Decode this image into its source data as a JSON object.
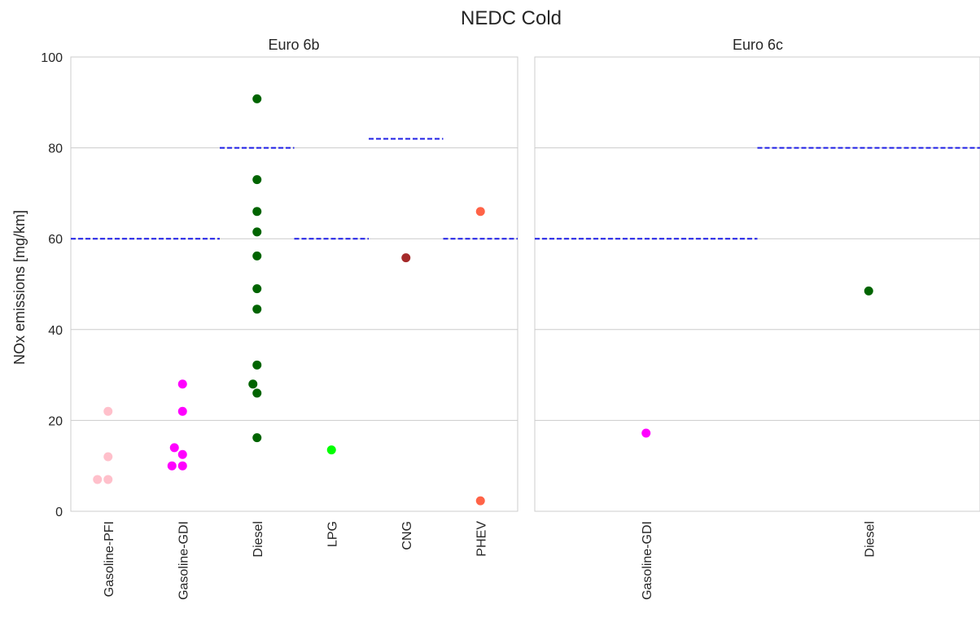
{
  "figure": {
    "title": "NEDC Cold",
    "ylabel": "NOx emissions [mg/km]"
  },
  "colors": {
    "grid": "#cccccc",
    "frame": "#cccccc",
    "limit_line": "#1f1fe6",
    "Gasoline-PFI": "#ffc0cb",
    "Gasoline-GDI": "#ff00ff",
    "Diesel": "#006400",
    "LPG": "#00ff00",
    "CNG": "#a52a2a",
    "PHEV": "#ff6347"
  },
  "chart_data": [
    {
      "type": "scatter",
      "title": "Euro 6b",
      "ylabel": "NOx emissions [mg/km]",
      "ylim": [
        0,
        100
      ],
      "yticks": [
        0,
        20,
        40,
        60,
        80,
        100
      ],
      "grid": true,
      "categories": [
        "Gasoline-PFI",
        "Gasoline-GDI",
        "Diesel",
        "LPG",
        "CNG",
        "PHEV"
      ],
      "points": {
        "Gasoline-PFI": [
          22,
          12,
          7,
          7
        ],
        "Gasoline-GDI": [
          28,
          22,
          14,
          12.5,
          10,
          10
        ],
        "Diesel": [
          90.8,
          73,
          66,
          61.5,
          56.2,
          49,
          44.5,
          32.2,
          28,
          26,
          16.2
        ],
        "LPG": [
          13.5
        ],
        "CNG": [
          55.8
        ],
        "PHEV": [
          66,
          2.3
        ]
      },
      "limits": [
        {
          "from": "Gasoline-PFI",
          "to": "Gasoline-GDI",
          "value": 60
        },
        {
          "from": "Diesel",
          "to": "Diesel",
          "value": 80
        },
        {
          "from": "LPG",
          "to": "LPG",
          "value": 60
        },
        {
          "from": "CNG",
          "to": "CNG",
          "value": 82
        },
        {
          "from": "PHEV",
          "to": "PHEV",
          "value": 60
        }
      ]
    },
    {
      "type": "scatter",
      "title": "Euro 6c",
      "ylim": [
        0,
        100
      ],
      "yticks": [
        0,
        20,
        40,
        60,
        80,
        100
      ],
      "grid": true,
      "categories": [
        "Gasoline-GDI",
        "Diesel"
      ],
      "points": {
        "Gasoline-GDI": [
          17.2
        ],
        "Diesel": [
          48.5
        ]
      },
      "limits": [
        {
          "from": "Gasoline-GDI",
          "to": "Gasoline-GDI",
          "value": 60
        },
        {
          "from": "Diesel",
          "to": "Diesel",
          "value": 80
        }
      ]
    }
  ]
}
